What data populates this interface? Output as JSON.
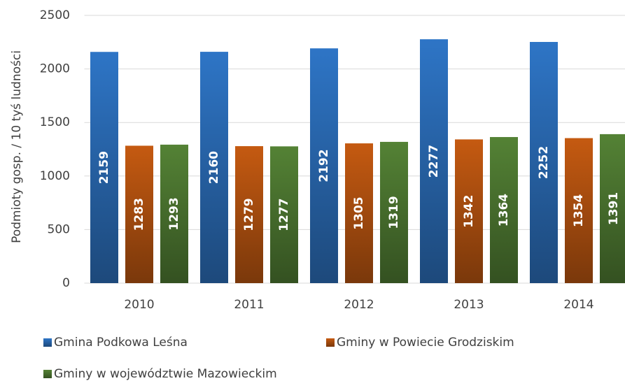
{
  "chart_data": {
    "type": "bar",
    "y_axis_label": "Podmioty gosp. / 10 tyś ludności",
    "categories": [
      "2010",
      "2011",
      "2012",
      "2013",
      "2014"
    ],
    "series": [
      {
        "name": "Gmina Podkowa Leśna",
        "color": "#2e75c6",
        "values": [
          2159,
          2160,
          2192,
          2277,
          2252
        ]
      },
      {
        "name": "Gminy w Powiecie Grodziskim",
        "color": "#c55a11",
        "values": [
          1283,
          1279,
          1305,
          1342,
          1354
        ]
      },
      {
        "name": "Gminy w województwie Mazowieckim",
        "color": "#548235",
        "values": [
          1293,
          1277,
          1319,
          1364,
          1391
        ]
      }
    ],
    "ylim": [
      0,
      2500
    ],
    "yticks": [
      0,
      500,
      1000,
      1500,
      2000,
      2500
    ],
    "grid": true,
    "legend": "bottom"
  }
}
